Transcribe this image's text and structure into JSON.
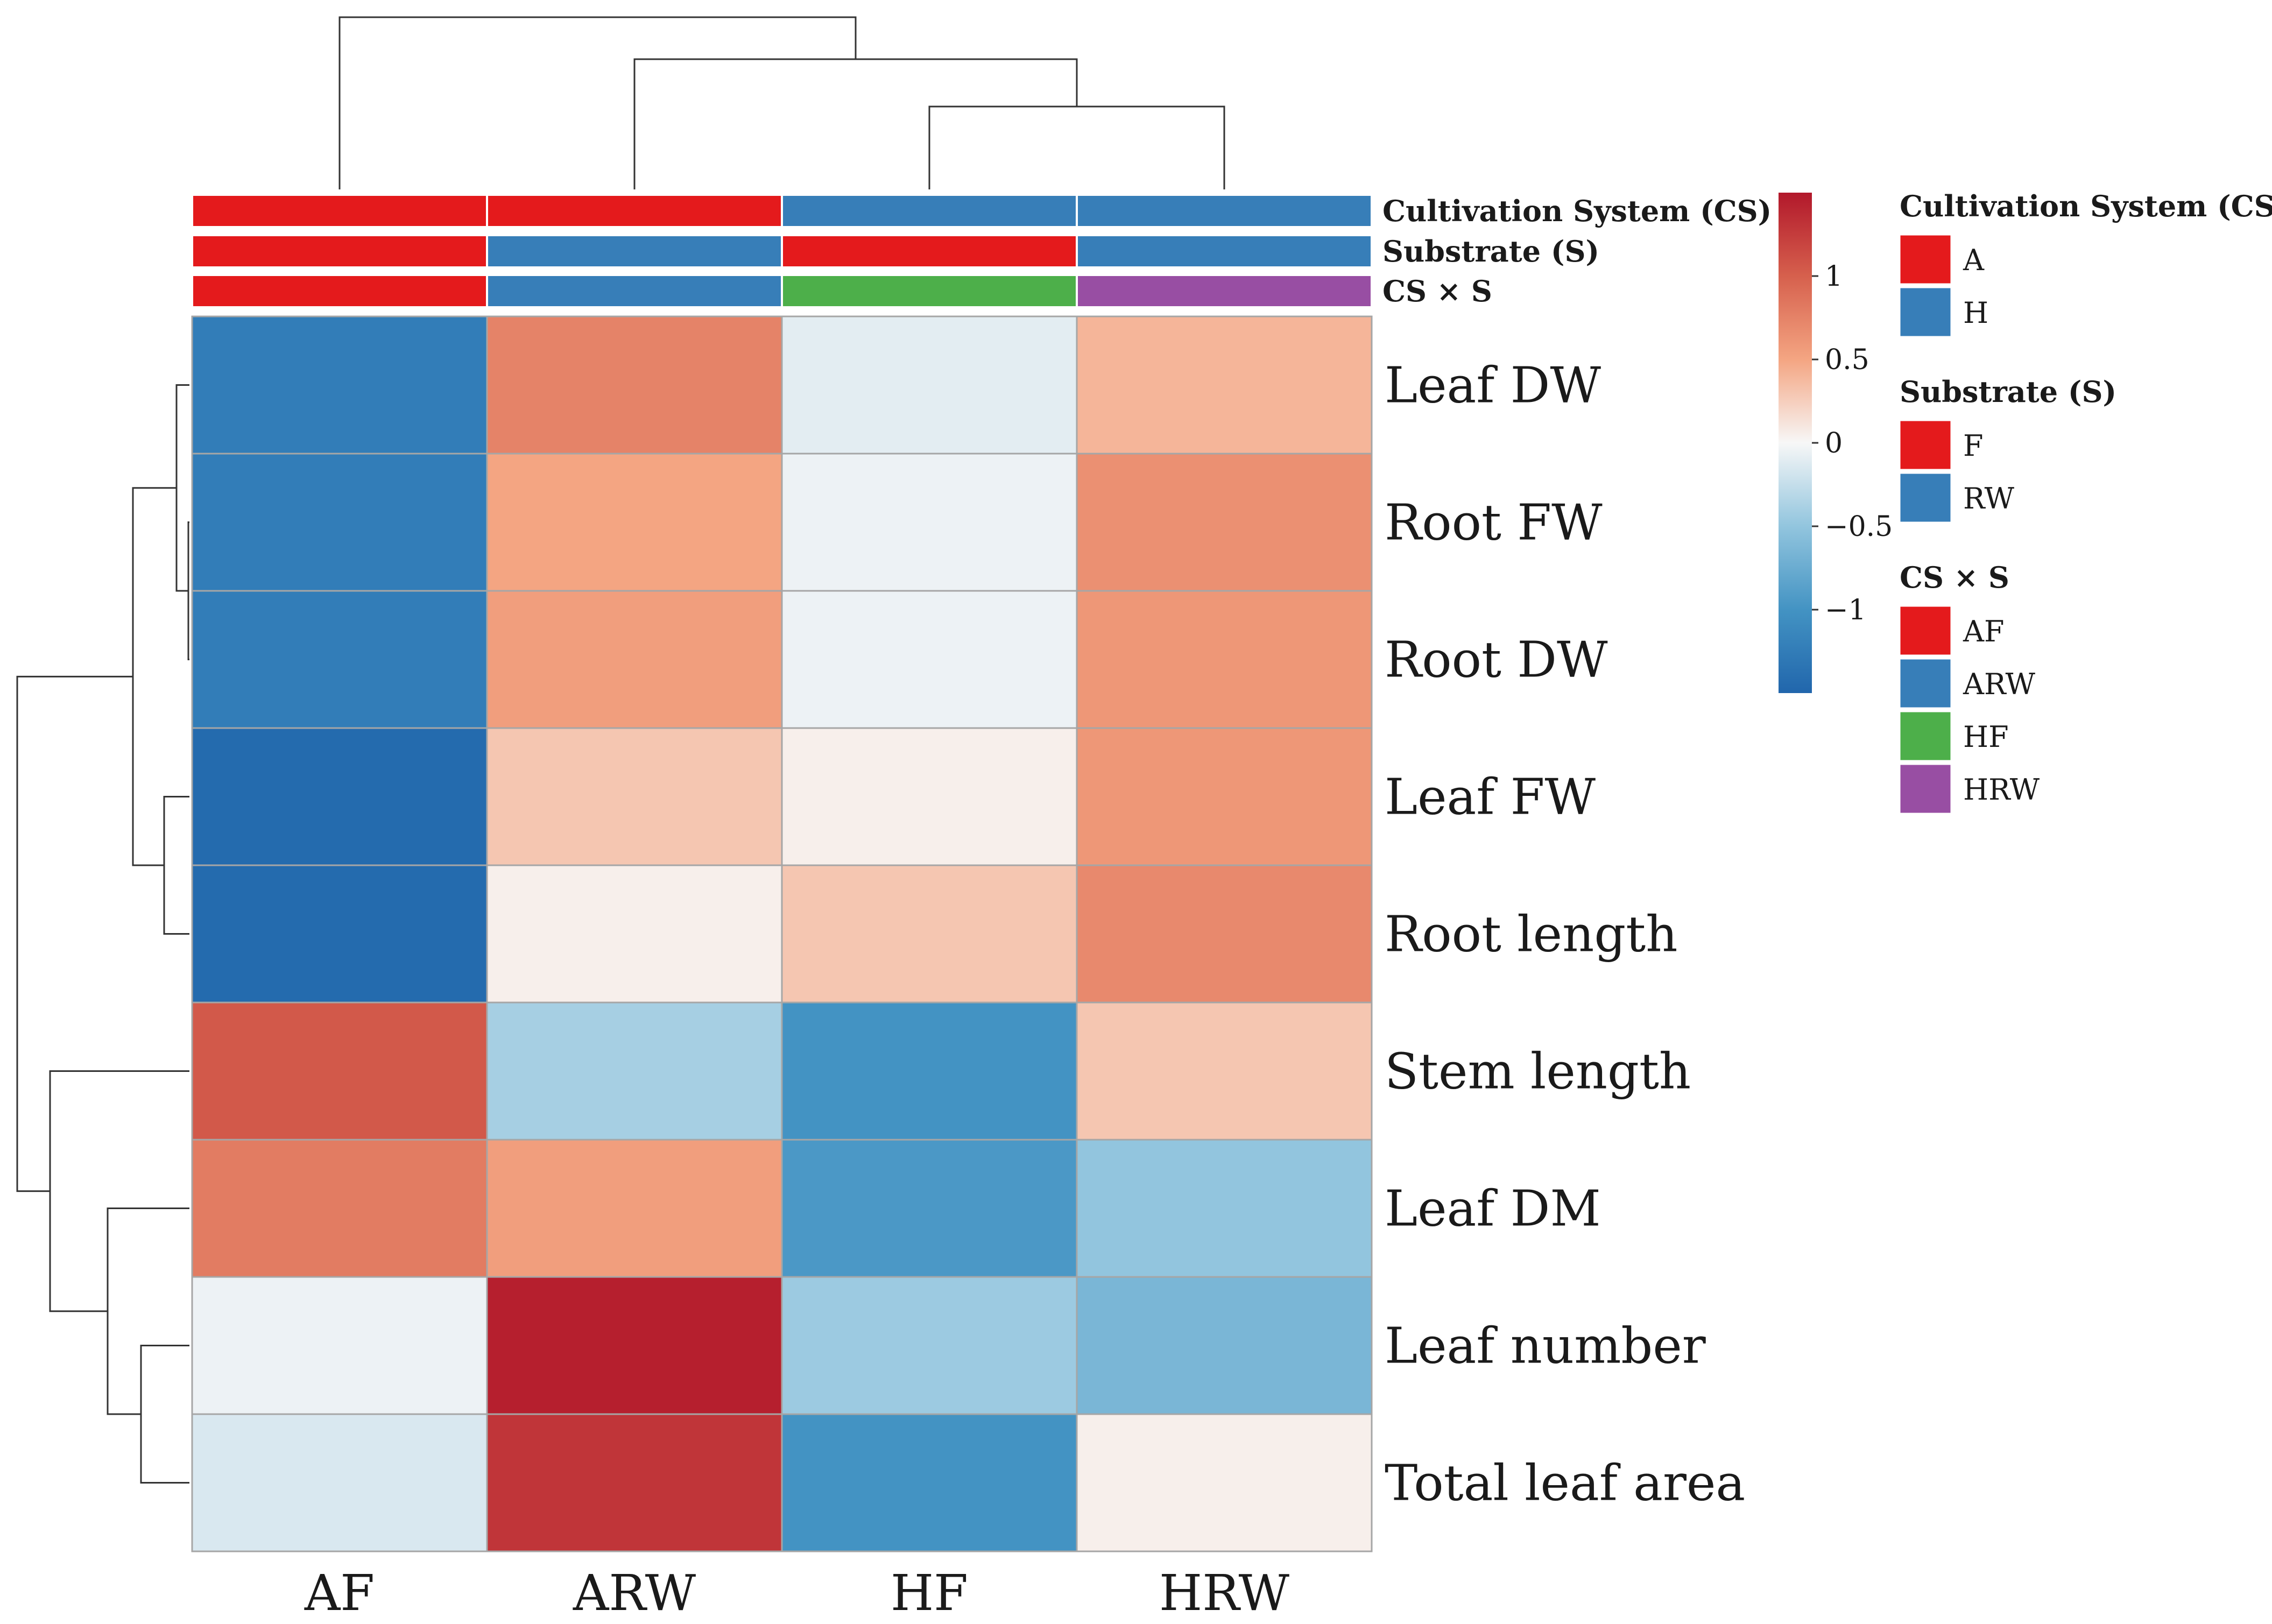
{
  "chart_data": {
    "type": "heatmap",
    "columns": [
      "AF",
      "ARW",
      "HF",
      "HRW"
    ],
    "rows": [
      "Leaf DW",
      "Root FW",
      "Root DW",
      "Leaf FW",
      "Root length",
      "Stem length",
      "Leaf DM",
      "Leaf number",
      "Total leaf area"
    ],
    "values": [
      [
        -1.25,
        0.75,
        -0.1,
        0.4
      ],
      [
        -1.25,
        0.5,
        -0.05,
        0.65
      ],
      [
        -1.25,
        0.55,
        -0.05,
        0.6
      ],
      [
        -1.45,
        0.3,
        0.05,
        0.6
      ],
      [
        -1.45,
        0.05,
        0.3,
        0.7
      ],
      [
        1.05,
        -0.4,
        -1.0,
        0.3
      ],
      [
        0.8,
        0.55,
        -0.95,
        -0.5
      ],
      [
        -0.05,
        1.45,
        -0.45,
        -0.65
      ],
      [
        -0.15,
        1.3,
        -1.0,
        0.05
      ]
    ],
    "color_scale": {
      "min": -1.5,
      "max": 1.5,
      "ticks": [
        1,
        0.5,
        0,
        -0.5,
        -1
      ],
      "tick_labels": [
        "1",
        "0.5",
        "0",
        "−0.5",
        "−1"
      ],
      "colors": [
        "#2166ac",
        "#4393c3",
        "#92c5de",
        "#f7f7f7",
        "#f4a582",
        "#d6604d",
        "#b2182b"
      ]
    },
    "annotation_tracks": [
      {
        "name": "Cultivation System (CS)",
        "values": [
          "A",
          "A",
          "H",
          "H"
        ]
      },
      {
        "name": "Substrate (S)",
        "values": [
          "F",
          "RW",
          "F",
          "RW"
        ]
      },
      {
        "name": "CS × S",
        "values": [
          "AF",
          "ARW",
          "HF",
          "HRW"
        ]
      }
    ],
    "legend": [
      {
        "title": "Cultivation System (CS)",
        "items": [
          {
            "label": "A",
            "color": "#e41a1c"
          },
          {
            "label": "H",
            "color": "#377eb8"
          }
        ]
      },
      {
        "title": "Substrate (S)",
        "items": [
          {
            "label": "F",
            "color": "#e41a1c"
          },
          {
            "label": "RW",
            "color": "#377eb8"
          }
        ]
      },
      {
        "title": "CS × S",
        "items": [
          {
            "label": "AF",
            "color": "#e41a1c"
          },
          {
            "label": "ARW",
            "color": "#377eb8"
          },
          {
            "label": "HF",
            "color": "#4daf4a"
          },
          {
            "label": "HRW",
            "color": "#984ea3"
          }
        ]
      }
    ]
  }
}
